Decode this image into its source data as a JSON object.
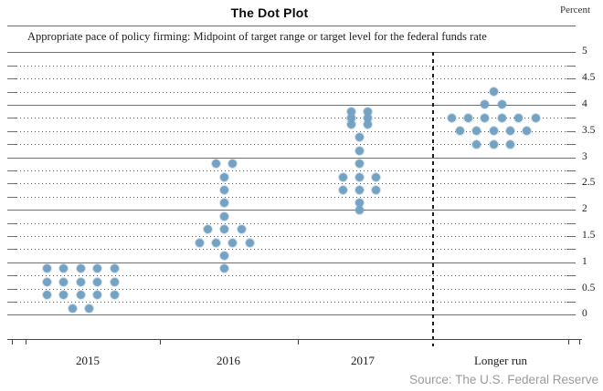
{
  "header": {
    "title": "The Dot Plot",
    "unit_label": "Percent"
  },
  "subtitle": "Appropriate pace of policy firming: Midpoint of target range or target level for the federal funds rate",
  "source": "Source: The U.S. Federal Reserve",
  "colors": {
    "dot": "#74a2c2",
    "gridline": "#6f6f6f",
    "separator": "#1c1c1c",
    "source_text": "#9b9b9b"
  },
  "chart_data": {
    "type": "scatter",
    "subtype": "fomc-dot-plot",
    "title": "The Dot Plot",
    "subtitle": "Appropriate pace of policy firming: Midpoint of target range or target level for the federal funds rate",
    "ylabel": "Percent",
    "ylim": [
      0,
      5
    ],
    "grid_step": 0.25,
    "grid_style": "solid lines at integers, dotted lines at quarter values, right-side tick labels every 0.5",
    "legend_position": "none",
    "yticks": [
      {
        "value": 5,
        "label": "5"
      },
      {
        "value": 4.5,
        "label": "4.5"
      },
      {
        "value": 4,
        "label": "4"
      },
      {
        "value": 3.5,
        "label": "3.5"
      },
      {
        "value": 3,
        "label": "3"
      },
      {
        "value": 2.5,
        "label": "2.5"
      },
      {
        "value": 2,
        "label": "2"
      },
      {
        "value": 1.5,
        "label": "1.5"
      },
      {
        "value": 1,
        "label": "1"
      },
      {
        "value": 0.5,
        "label": "0.5"
      },
      {
        "value": 0,
        "label": "0"
      }
    ],
    "categories": [
      "2015",
      "2016",
      "2017",
      "Longer run"
    ],
    "separator_before_category": "Longer run",
    "series": [
      {
        "name": "2015",
        "dots": [
          {
            "value": 0.875,
            "count": 5
          },
          {
            "value": 0.625,
            "count": 5
          },
          {
            "value": 0.375,
            "count": 5
          },
          {
            "value": 0.125,
            "count": 2
          }
        ]
      },
      {
        "name": "2016",
        "dots": [
          {
            "value": 2.875,
            "count": 2
          },
          {
            "value": 2.625,
            "count": 1
          },
          {
            "value": 2.375,
            "count": 1
          },
          {
            "value": 2.125,
            "count": 1
          },
          {
            "value": 1.875,
            "count": 1
          },
          {
            "value": 1.625,
            "count": 3
          },
          {
            "value": 1.375,
            "count": 4
          },
          {
            "value": 1.125,
            "count": 1
          },
          {
            "value": 0.875,
            "count": 1
          }
        ]
      },
      {
        "name": "2017",
        "dots": [
          {
            "value": 3.875,
            "count": 2
          },
          {
            "value": 3.75,
            "count": 2
          },
          {
            "value": 3.625,
            "count": 2
          },
          {
            "value": 3.375,
            "count": 1
          },
          {
            "value": 3.125,
            "count": 1
          },
          {
            "value": 2.875,
            "count": 1
          },
          {
            "value": 2.625,
            "count": 3
          },
          {
            "value": 2.375,
            "count": 3
          },
          {
            "value": 2.125,
            "count": 1
          },
          {
            "value": 2.0,
            "count": 1
          }
        ]
      },
      {
        "name": "Longer run",
        "dots": [
          {
            "value": 4.25,
            "count": 1
          },
          {
            "value": 4.0,
            "count": 2
          },
          {
            "value": 3.75,
            "count": 6
          },
          {
            "value": 3.5,
            "count": 5
          },
          {
            "value": 3.25,
            "count": 3
          }
        ]
      }
    ]
  }
}
